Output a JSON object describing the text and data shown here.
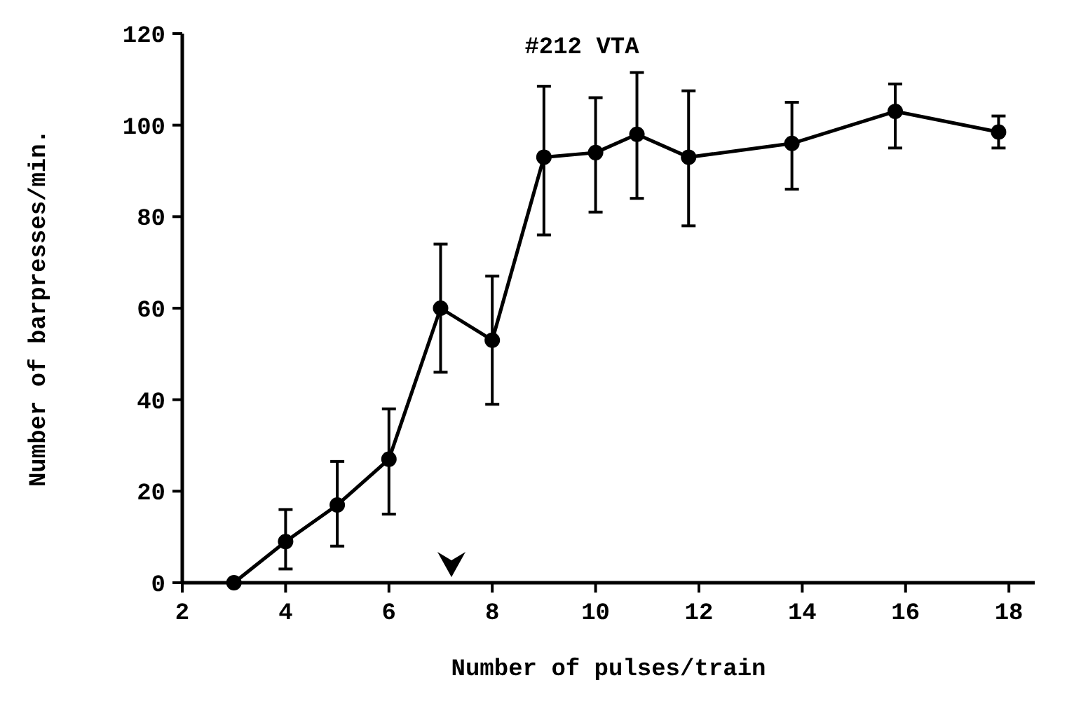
{
  "chart_data": {
    "type": "line",
    "title": "#212  VTA",
    "xlabel": "Number  of  pulses/train",
    "ylabel": "Number  of  barpresses/min.",
    "x": [
      3,
      4,
      5,
      6,
      7,
      8,
      9,
      10,
      10.8,
      11.8,
      13.8,
      15.8,
      17.8
    ],
    "values": [
      0,
      9,
      17,
      27,
      60,
      53,
      93,
      94,
      98,
      93,
      96,
      103,
      98.5
    ],
    "errors": [
      null,
      [
        3,
        16
      ],
      [
        8,
        26.5
      ],
      [
        15,
        38
      ],
      [
        46,
        74
      ],
      [
        39,
        67
      ],
      [
        76,
        108.5
      ],
      [
        81,
        106
      ],
      [
        84,
        111.5
      ],
      [
        78,
        107.5
      ],
      [
        86,
        105
      ],
      [
        95,
        109
      ],
      [
        95,
        102
      ]
    ],
    "color": "#000000",
    "marker": "circle",
    "line_style": "solid",
    "xlim": [
      2,
      18.5
    ],
    "xticks": [
      2,
      4,
      6,
      8,
      10,
      12,
      14,
      16,
      18
    ],
    "ylim": [
      0,
      120
    ],
    "yticks": [
      0,
      20,
      40,
      60,
      80,
      100,
      120
    ],
    "grid": false
  }
}
